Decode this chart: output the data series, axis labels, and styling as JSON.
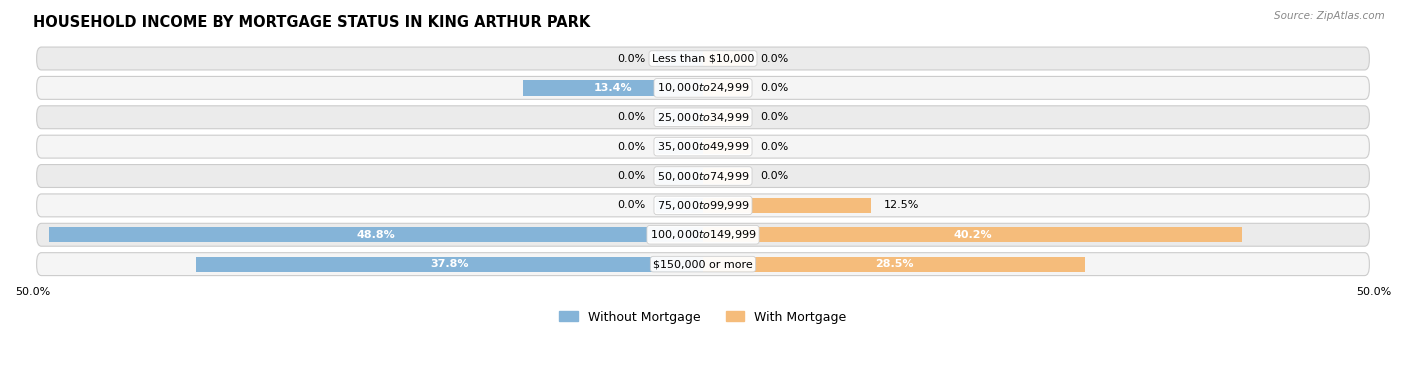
{
  "title": "HOUSEHOLD INCOME BY MORTGAGE STATUS IN KING ARTHUR PARK",
  "source": "Source: ZipAtlas.com",
  "categories": [
    "Less than $10,000",
    "$10,000 to $24,999",
    "$25,000 to $34,999",
    "$35,000 to $49,999",
    "$50,000 to $74,999",
    "$75,000 to $99,999",
    "$100,000 to $149,999",
    "$150,000 or more"
  ],
  "without_mortgage": [
    0.0,
    13.4,
    0.0,
    0.0,
    0.0,
    0.0,
    48.8,
    37.8
  ],
  "with_mortgage": [
    0.0,
    0.0,
    0.0,
    0.0,
    0.0,
    12.5,
    40.2,
    28.5
  ],
  "color_without": "#85b4d8",
  "color_with": "#f5bc7b",
  "axis_limit": 50.0,
  "row_bg_color": "#e8e8e8",
  "row_bg_alt_color": "#f2f2f2",
  "label_fontsize": 8.0,
  "title_fontsize": 10.5,
  "legend_fontsize": 9,
  "stub_size": 3.5
}
